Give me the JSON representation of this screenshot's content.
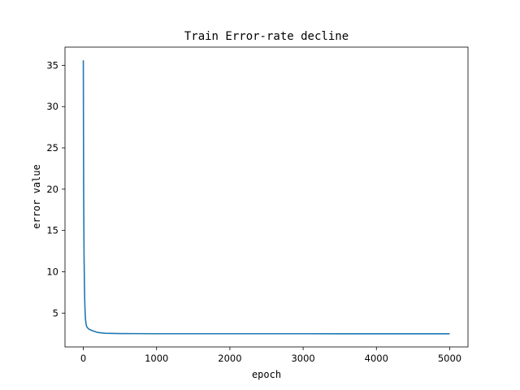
{
  "chart_data": {
    "type": "line",
    "title": "Train Error-rate decline",
    "xlabel": "epoch",
    "ylabel": "error value",
    "xlim": [
      -250,
      5250
    ],
    "ylim": [
      0.9,
      37.2
    ],
    "xticks": [
      0,
      1000,
      2000,
      3000,
      4000,
      5000
    ],
    "xtick_labels": [
      "0",
      "1000",
      "2000",
      "3000",
      "4000",
      "5000"
    ],
    "yticks": [
      5,
      10,
      15,
      20,
      25,
      30,
      35
    ],
    "ytick_labels": [
      "5",
      "10",
      "15",
      "20",
      "25",
      "30",
      "35"
    ],
    "grid": false,
    "legend": "none",
    "series": [
      {
        "color": "#1f77b4",
        "x": [
          0,
          2,
          5,
          10,
          15,
          20,
          25,
          30,
          40,
          50,
          70,
          100,
          150,
          200,
          300,
          500,
          750,
          1000,
          1500,
          2000,
          2500,
          3000,
          3500,
          4000,
          4500,
          5000
        ],
        "y": [
          35.6,
          28.0,
          19.0,
          12.0,
          8.5,
          6.3,
          5.0,
          4.2,
          3.55,
          3.3,
          3.1,
          2.95,
          2.78,
          2.65,
          2.55,
          2.52,
          2.51,
          2.5,
          2.5,
          2.5,
          2.5,
          2.5,
          2.49,
          2.49,
          2.49,
          2.49
        ]
      }
    ]
  }
}
